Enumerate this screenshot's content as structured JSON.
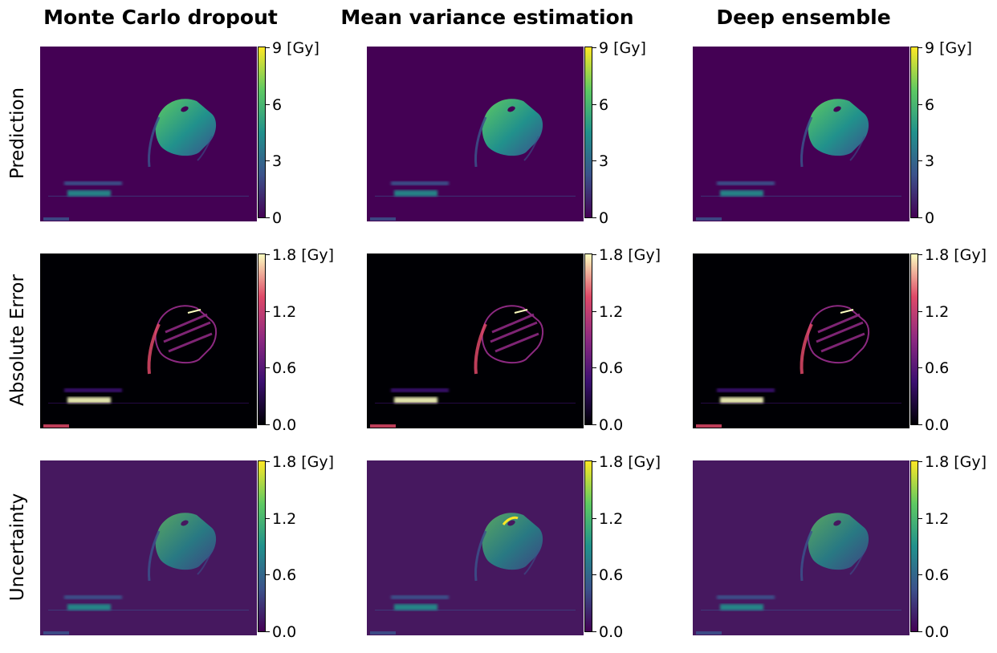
{
  "chart_data": {
    "type": "heatmap",
    "columns": [
      "Monte Carlo dropout",
      "Mean variance estimation",
      "Deep ensemble"
    ],
    "rows": [
      {
        "label": "Prediction",
        "colormap": "viridis",
        "ticks": [
          "0",
          "3",
          "6",
          "9 [Gy]"
        ],
        "range": [
          0,
          9
        ],
        "colors": {
          "bg": "#440154",
          "low": "#3b528b",
          "mid": "#21918c",
          "high": "#5ec962",
          "top": "#fde725"
        }
      },
      {
        "label": "Absolute Error",
        "colormap": "magma",
        "ticks": [
          "0.0",
          "0.6",
          "1.2",
          "1.8 [Gy]"
        ],
        "range": [
          0,
          1.8
        ],
        "colors": {
          "bg": "#000004",
          "low": "#3b0f70",
          "mid": "#8c2981",
          "high": "#de4968",
          "top": "#fcfdbf"
        }
      },
      {
        "label": "Uncertainty",
        "colormap": "viridis",
        "ticks": [
          "0.0",
          "0.6",
          "1.2",
          "1.8 [Gy]"
        ],
        "range": [
          0,
          1.8
        ],
        "colors": {
          "bg": "#46185f",
          "low": "#3b528b",
          "mid": "#21918c",
          "high": "#5ec962",
          "top": "#fde725"
        }
      }
    ]
  }
}
